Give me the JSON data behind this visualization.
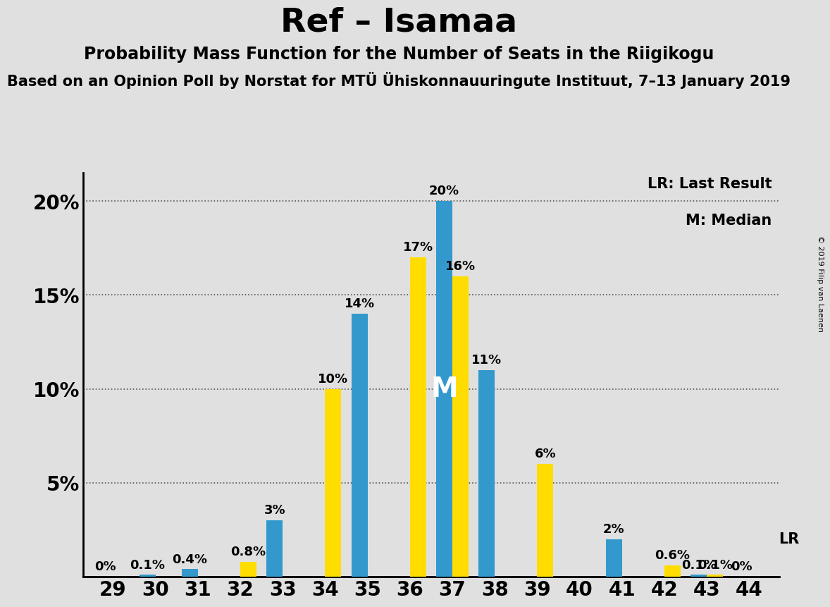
{
  "title": "Ref – Isamaa",
  "subtitle": "Probability Mass Function for the Number of Seats in the Riigikogu",
  "subtitle2": "Based on an Opinion Poll by Norstat for MTÜ Ühiskonnauuringute Instituut, 7–13 January 2019",
  "copyright": "© 2019 Filip van Laenen",
  "seats": [
    29,
    30,
    31,
    32,
    33,
    34,
    35,
    36,
    37,
    38,
    39,
    40,
    41,
    42,
    43,
    44
  ],
  "blue_values": [
    0.0,
    0.1,
    0.4,
    0.0,
    3.0,
    0.0,
    14.0,
    0.0,
    20.0,
    11.0,
    0.0,
    0.0,
    2.0,
    0.0,
    0.1,
    0.0
  ],
  "yellow_values": [
    0.0,
    0.0,
    0.0,
    0.8,
    0.0,
    10.0,
    0.0,
    17.0,
    16.0,
    0.0,
    6.0,
    0.0,
    0.0,
    0.6,
    0.1,
    0.0
  ],
  "bar_labels_blue": [
    "0%",
    "0.1%",
    "0.4%",
    "",
    "3%",
    "",
    "14%",
    "",
    "20%",
    "11%",
    "",
    "",
    "2%",
    "",
    "0.1%",
    "0%"
  ],
  "bar_labels_yellow": [
    "",
    "",
    "",
    "0.8%",
    "",
    "10%",
    "",
    "17%",
    "16%",
    "",
    "6%",
    "",
    "",
    "0.6%",
    "0.1%",
    ""
  ],
  "blue_color": "#3399cc",
  "yellow_color": "#ffdd00",
  "median_seat": 37,
  "lr_seat": 44,
  "lr_label": "LR",
  "median_label": "M",
  "legend_lr": "LR: Last Result",
  "legend_m": "M: Median",
  "yticks": [
    0,
    5,
    10,
    15,
    20
  ],
  "ytick_labels": [
    "",
    "5%",
    "10%",
    "15%",
    "20%"
  ],
  "background_color": "#e0e0e0",
  "title_fontsize": 34,
  "subtitle_fontsize": 17,
  "subtitle2_fontsize": 15,
  "bar_label_fontsize": 13,
  "legend_fontsize": 15,
  "tick_fontsize": 20
}
